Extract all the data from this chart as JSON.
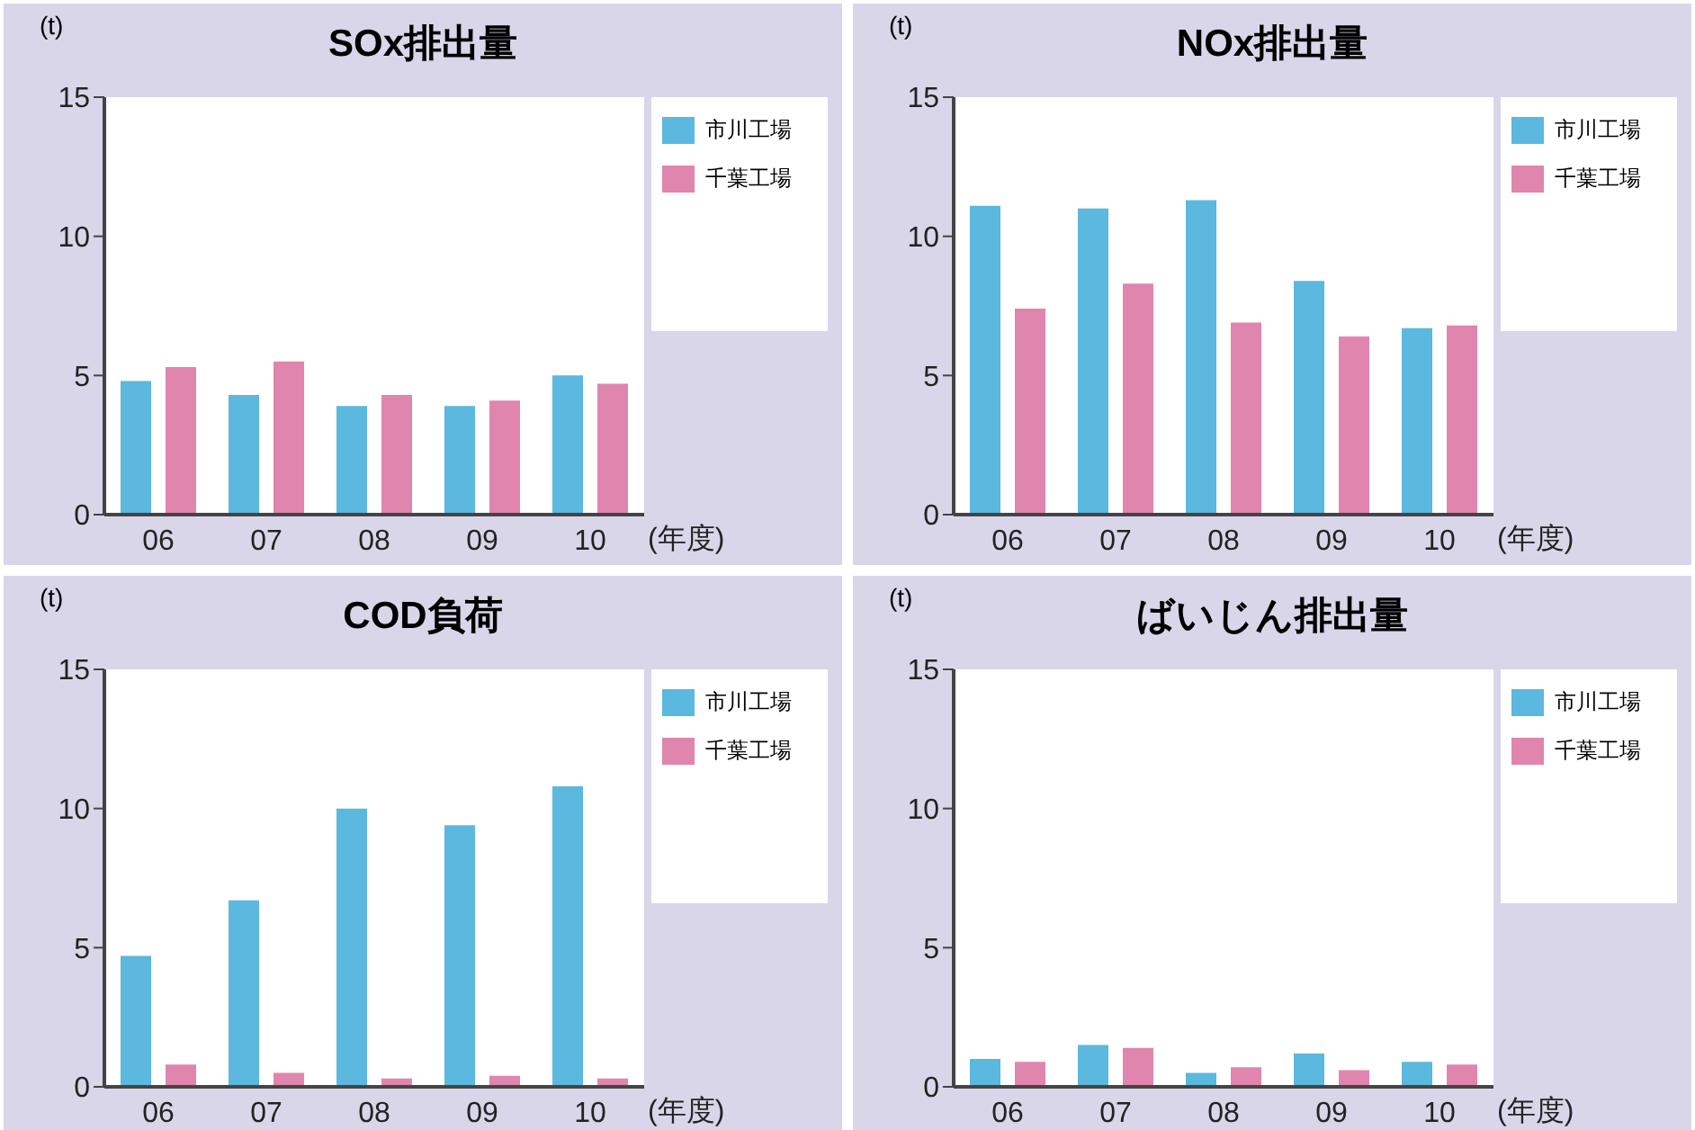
{
  "chart_data": [
    {
      "type": "bar",
      "title": "SOx排出量",
      "ylabel": "(t)",
      "xlabel": "(年度)",
      "categories": [
        "06",
        "07",
        "08",
        "09",
        "10"
      ],
      "ylim": [
        0,
        15
      ],
      "yticks": [
        0,
        5,
        10,
        15
      ],
      "grid": false,
      "legend": "top right",
      "series": [
        {
          "name": "市川工場",
          "color": "#5bb8de",
          "values": [
            4.8,
            4.3,
            3.9,
            3.9,
            5.0
          ]
        },
        {
          "name": "千葉工場",
          "color": "#e085ae",
          "values": [
            5.3,
            5.5,
            4.3,
            4.1,
            4.7
          ]
        }
      ]
    },
    {
      "type": "bar",
      "title": "NOx排出量",
      "ylabel": "(t)",
      "xlabel": "(年度)",
      "categories": [
        "06",
        "07",
        "08",
        "09",
        "10"
      ],
      "ylim": [
        0,
        15
      ],
      "yticks": [
        0,
        5,
        10,
        15
      ],
      "grid": false,
      "legend": "top right",
      "series": [
        {
          "name": "市川工場",
          "color": "#5bb8de",
          "values": [
            11.1,
            11.0,
            11.3,
            8.4,
            6.7
          ]
        },
        {
          "name": "千葉工場",
          "color": "#e085ae",
          "values": [
            7.4,
            8.3,
            6.9,
            6.4,
            6.8
          ]
        }
      ]
    },
    {
      "type": "bar",
      "title": "COD負荷",
      "ylabel": "(t)",
      "xlabel": "(年度)",
      "categories": [
        "06",
        "07",
        "08",
        "09",
        "10"
      ],
      "ylim": [
        0,
        15
      ],
      "yticks": [
        0,
        5,
        10,
        15
      ],
      "grid": false,
      "legend": "top right",
      "series": [
        {
          "name": "市川工場",
          "color": "#5bb8de",
          "values": [
            4.7,
            6.7,
            10.0,
            9.4,
            10.8
          ]
        },
        {
          "name": "千葉工場",
          "color": "#e085ae",
          "values": [
            0.8,
            0.5,
            0.3,
            0.4,
            0.3
          ]
        }
      ]
    },
    {
      "type": "bar",
      "title": "ばいじん排出量",
      "ylabel": "(t)",
      "xlabel": "(年度)",
      "categories": [
        "06",
        "07",
        "08",
        "09",
        "10"
      ],
      "ylim": [
        0,
        15
      ],
      "yticks": [
        0,
        5,
        10,
        15
      ],
      "grid": false,
      "legend": "top right",
      "series": [
        {
          "name": "市川工場",
          "color": "#5bb8de",
          "values": [
            1.0,
            1.5,
            0.5,
            1.2,
            0.9
          ]
        },
        {
          "name": "千葉工場",
          "color": "#e085ae",
          "values": [
            0.9,
            1.4,
            0.7,
            0.6,
            0.8
          ]
        }
      ]
    }
  ]
}
